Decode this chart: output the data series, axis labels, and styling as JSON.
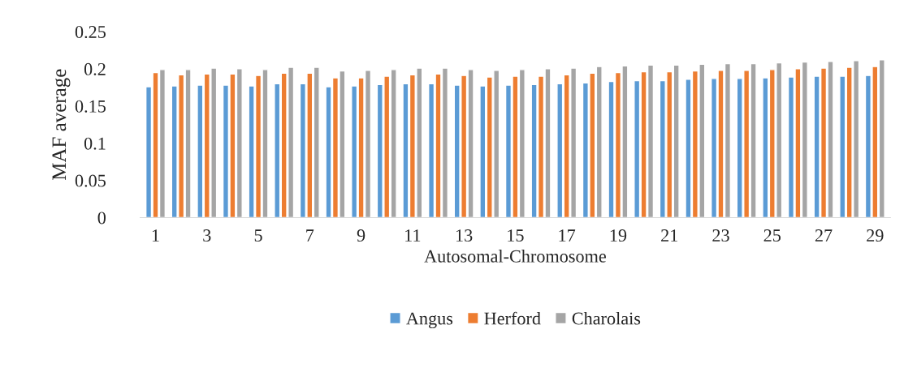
{
  "chart_data": {
    "type": "bar",
    "xlabel": "Autosomal-Chromosome",
    "ylabel": "MAF average",
    "categories": [
      "1",
      null,
      "3",
      null,
      "5",
      null,
      "7",
      null,
      "9",
      null,
      "11",
      null,
      "13",
      null,
      "15",
      null,
      "17",
      null,
      "19",
      null,
      "21",
      null,
      "23",
      null,
      "25",
      null,
      "27",
      null,
      "29"
    ],
    "series": [
      {
        "name": "Angus",
        "color": "#5b9bd5",
        "values": [
          0.176,
          0.177,
          0.178,
          0.178,
          0.177,
          0.18,
          0.18,
          0.176,
          0.177,
          0.179,
          0.18,
          0.18,
          0.178,
          0.177,
          0.178,
          0.179,
          0.18,
          0.181,
          0.183,
          0.184,
          0.184,
          0.186,
          0.187,
          0.187,
          0.188,
          0.189,
          0.19,
          0.19,
          0.191
        ]
      },
      {
        "name": "Herford",
        "color": "#ed7d31",
        "values": [
          0.195,
          0.192,
          0.193,
          0.193,
          0.191,
          0.194,
          0.194,
          0.188,
          0.188,
          0.19,
          0.192,
          0.193,
          0.191,
          0.189,
          0.19,
          0.19,
          0.192,
          0.194,
          0.195,
          0.196,
          0.196,
          0.197,
          0.198,
          0.198,
          0.199,
          0.2,
          0.201,
          0.202,
          0.203
        ]
      },
      {
        "name": "Charolais",
        "color": "#a5a5a5",
        "values": [
          0.199,
          0.199,
          0.201,
          0.2,
          0.199,
          0.202,
          0.202,
          0.197,
          0.198,
          0.199,
          0.201,
          0.201,
          0.199,
          0.198,
          0.199,
          0.2,
          0.201,
          0.203,
          0.204,
          0.205,
          0.205,
          0.206,
          0.207,
          0.207,
          0.208,
          0.209,
          0.21,
          0.211,
          0.212
        ]
      }
    ],
    "ylim": [
      0,
      0.25
    ],
    "yticks": [
      0,
      0.05,
      0.1,
      0.15,
      0.2,
      0.25
    ],
    "grid": false,
    "legend": "bottom"
  }
}
